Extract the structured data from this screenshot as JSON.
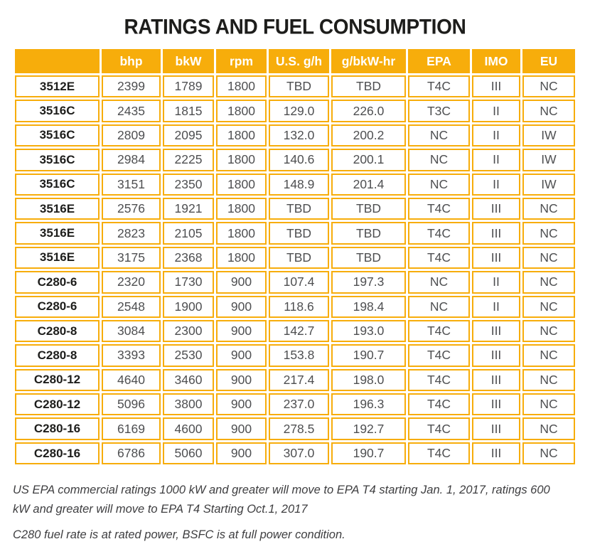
{
  "title": "RATINGS AND FUEL CONSUMPTION",
  "colors": {
    "accent": "#F7AD0B",
    "header_text": "#FFFFFF",
    "value_text": "#4E4F51",
    "model_text": "#1D1D1B",
    "note_text": "#3E3E40"
  },
  "table": {
    "columns": [
      "",
      "bhp",
      "bkW",
      "rpm",
      "U.S. g/h",
      "g/bkW-hr",
      "EPA",
      "IMO",
      "EU"
    ],
    "rows": [
      {
        "model": "3512E",
        "values": [
          "2399",
          "1789",
          "1800",
          "TBD",
          "TBD",
          "T4C",
          "III",
          "NC"
        ]
      },
      {
        "model": "3516C",
        "values": [
          "2435",
          "1815",
          "1800",
          "129.0",
          "226.0",
          "T3C",
          "II",
          "NC"
        ]
      },
      {
        "model": "3516C",
        "values": [
          "2809",
          "2095",
          "1800",
          "132.0",
          "200.2",
          "NC",
          "II",
          "IW"
        ]
      },
      {
        "model": "3516C",
        "values": [
          "2984",
          "2225",
          "1800",
          "140.6",
          "200.1",
          "NC",
          "II",
          "IW"
        ]
      },
      {
        "model": "3516C",
        "values": [
          "3151",
          "2350",
          "1800",
          "148.9",
          "201.4",
          "NC",
          "II",
          "IW"
        ]
      },
      {
        "model": "3516E",
        "values": [
          "2576",
          "1921",
          "1800",
          "TBD",
          "TBD",
          "T4C",
          "III",
          "NC"
        ]
      },
      {
        "model": "3516E",
        "values": [
          "2823",
          "2105",
          "1800",
          "TBD",
          "TBD",
          "T4C",
          "III",
          "NC"
        ]
      },
      {
        "model": "3516E",
        "values": [
          "3175",
          "2368",
          "1800",
          "TBD",
          "TBD",
          "T4C",
          "III",
          "NC"
        ]
      },
      {
        "model": "C280-6",
        "values": [
          "2320",
          "1730",
          "900",
          "107.4",
          "197.3",
          "NC",
          "II",
          "NC"
        ]
      },
      {
        "model": "C280-6",
        "values": [
          "2548",
          "1900",
          "900",
          "118.6",
          "198.4",
          "NC",
          "II",
          "NC"
        ]
      },
      {
        "model": "C280-8",
        "values": [
          "3084",
          "2300",
          "900",
          "142.7",
          "193.0",
          "T4C",
          "III",
          "NC"
        ]
      },
      {
        "model": "C280-8",
        "values": [
          "3393",
          "2530",
          "900",
          "153.8",
          "190.7",
          "T4C",
          "III",
          "NC"
        ]
      },
      {
        "model": "C280-12",
        "values": [
          "4640",
          "3460",
          "900",
          "217.4",
          "198.0",
          "T4C",
          "III",
          "NC"
        ]
      },
      {
        "model": "C280-12",
        "values": [
          "5096",
          "3800",
          "900",
          "237.0",
          "196.3",
          "T4C",
          "III",
          "NC"
        ]
      },
      {
        "model": "C280-16",
        "values": [
          "6169",
          "4600",
          "900",
          "278.5",
          "192.7",
          "T4C",
          "III",
          "NC"
        ]
      },
      {
        "model": "C280-16",
        "values": [
          "6786",
          "5060",
          "900",
          "307.0",
          "190.7",
          "T4C",
          "III",
          "NC"
        ]
      }
    ]
  },
  "notes": [
    "US EPA commercial ratings 1000 kW and greater will move to EPA T4 starting Jan. 1, 2017, ratings 600 kW and greater will move to EPA T4 Starting Oct.1, 2017",
    "C280 fuel rate is at rated power, BSFC is at full power condition."
  ]
}
